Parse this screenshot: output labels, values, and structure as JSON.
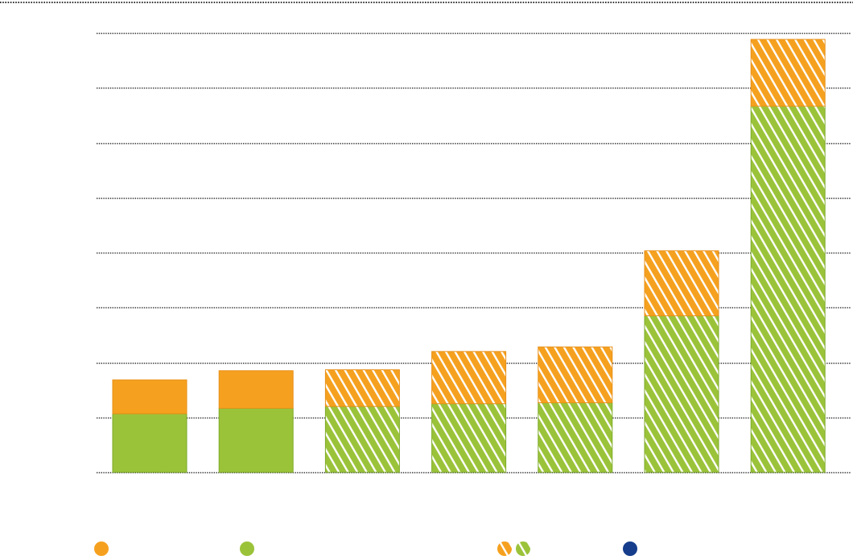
{
  "chart_data": {
    "type": "bar",
    "stacked": true,
    "categories": [
      "",
      "",
      "",
      "",
      "",
      "",
      ""
    ],
    "series": [
      {
        "values": [
          6.4,
          7.0,
          7.2,
          7.5,
          7.6,
          17.1,
          40.0
        ]
      },
      {
        "values": [
          3.7,
          4.1,
          4.0,
          5.7,
          6.1,
          7.1,
          7.3
        ]
      }
    ],
    "hatched": [
      false,
      false,
      true,
      true,
      true,
      true,
      true
    ],
    "ylim": [
      0,
      48
    ],
    "grid": true,
    "colors": {
      "green": "#9bc33a",
      "green_edge": "#7eaa2a",
      "orange": "#f5a11f",
      "orange_edge": "#e8901a",
      "navy": "#163d8c",
      "grid": "#333333"
    },
    "legend": {
      "placement": "bottom",
      "items": [
        {
          "marker": "orange-dot-icon"
        },
        {
          "marker": "green-dot-icon"
        },
        {
          "marker": "hatched-dots-icon"
        },
        {
          "marker": "navy-dot-icon"
        }
      ]
    }
  }
}
